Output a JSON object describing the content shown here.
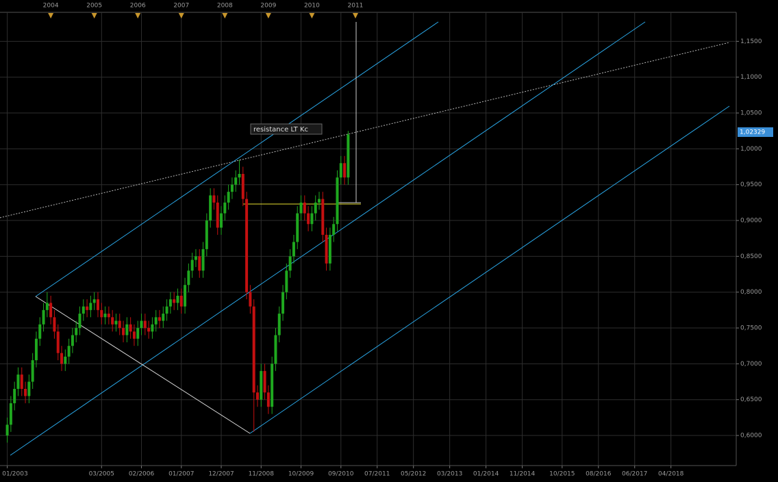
{
  "chart_data": {
    "type": "candlestick",
    "annotation": "resistance LT  Kc",
    "current_price": {
      "value": 1.02329,
      "label": "1,02329"
    },
    "top_labels": [
      "2004",
      "2005",
      "2006",
      "2007",
      "2008",
      "2009",
      "2010",
      "2011"
    ],
    "up_color": "#1fa81f",
    "down_color": "#c41010",
    "grid": true,
    "xlim": [
      "11/2002",
      "10/2019"
    ],
    "xticks": [
      "01/2003",
      "03/2005",
      "02/2006",
      "01/2007",
      "12/2007",
      "11/2008",
      "10/2009",
      "09/2010",
      "07/2011",
      "05/2012",
      "03/2013",
      "01/2014",
      "11/2014",
      "10/2015",
      "08/2016",
      "06/2017",
      "04/2018"
    ],
    "ylim": [
      0.558,
      1.179
    ],
    "yticks": [
      {
        "value": 0.6,
        "label": "0,6000"
      },
      {
        "value": 0.65,
        "label": "0,6500"
      },
      {
        "value": 0.7,
        "label": "0,7000"
      },
      {
        "value": 0.75,
        "label": "0,7500"
      },
      {
        "value": 0.8,
        "label": "0,8000"
      },
      {
        "value": 0.85,
        "label": "0,8500"
      },
      {
        "value": 0.9,
        "label": "0,9000"
      },
      {
        "value": 0.95,
        "label": "0,9500"
      },
      {
        "value": 1.0,
        "label": "1,0000"
      },
      {
        "value": 1.05,
        "label": "1,0500"
      },
      {
        "value": 1.1,
        "label": "1,1000"
      },
      {
        "value": 1.15,
        "label": "1,1500"
      }
    ],
    "x": [
      "01/2003",
      "02/2003",
      "03/2003",
      "04/2003",
      "05/2003",
      "06/2003",
      "07/2003",
      "08/2003",
      "09/2003",
      "10/2003",
      "11/2003",
      "12/2003",
      "01/2004",
      "02/2004",
      "03/2004",
      "04/2004",
      "05/2004",
      "06/2004",
      "07/2004",
      "08/2004",
      "09/2004",
      "10/2004",
      "11/2004",
      "12/2004",
      "01/2005",
      "02/2005",
      "03/2005",
      "04/2005",
      "05/2005",
      "06/2005",
      "07/2005",
      "08/2005",
      "09/2005",
      "10/2005",
      "11/2005",
      "12/2005",
      "01/2006",
      "02/2006",
      "03/2006",
      "04/2006",
      "05/2006",
      "06/2006",
      "07/2006",
      "08/2006",
      "09/2006",
      "10/2006",
      "11/2006",
      "12/2006",
      "01/2007",
      "02/2007",
      "03/2007",
      "04/2007",
      "05/2007",
      "06/2007",
      "07/2007",
      "08/2007",
      "09/2007",
      "10/2007",
      "11/2007",
      "12/2007",
      "01/2008",
      "02/2008",
      "03/2008",
      "04/2008",
      "05/2008",
      "06/2008",
      "07/2008",
      "08/2008",
      "09/2008",
      "10/2008",
      "11/2008",
      "12/2008",
      "01/2009",
      "02/2009",
      "03/2009",
      "04/2009",
      "05/2009",
      "06/2009",
      "07/2009",
      "08/2009",
      "09/2009",
      "10/2009",
      "11/2009",
      "12/2009",
      "01/2010",
      "02/2010",
      "03/2010",
      "04/2010",
      "05/2010",
      "06/2010",
      "07/2010",
      "08/2010",
      "09/2010",
      "10/2010",
      "11/2010"
    ],
    "open": [
      0.6,
      0.615,
      0.645,
      0.665,
      0.685,
      0.665,
      0.655,
      0.675,
      0.705,
      0.735,
      0.755,
      0.775,
      0.785,
      0.765,
      0.745,
      0.715,
      0.7,
      0.71,
      0.725,
      0.74,
      0.75,
      0.77,
      0.78,
      0.775,
      0.785,
      0.79,
      0.775,
      0.765,
      0.77,
      0.765,
      0.755,
      0.76,
      0.75,
      0.74,
      0.755,
      0.745,
      0.735,
      0.75,
      0.76,
      0.75,
      0.745,
      0.755,
      0.765,
      0.76,
      0.77,
      0.78,
      0.79,
      0.785,
      0.795,
      0.78,
      0.81,
      0.83,
      0.845,
      0.85,
      0.83,
      0.86,
      0.9,
      0.935,
      0.925,
      0.89,
      0.91,
      0.925,
      0.94,
      0.95,
      0.96,
      0.965,
      0.93,
      0.8,
      0.78,
      0.66,
      0.65,
      0.69,
      0.66,
      0.64,
      0.7,
      0.74,
      0.77,
      0.8,
      0.83,
      0.85,
      0.87,
      0.91,
      0.925,
      0.91,
      0.895,
      0.91,
      0.925,
      0.93,
      0.88,
      0.84,
      0.88,
      0.895,
      0.96,
      0.98,
      0.96
    ],
    "high": [
      0.625,
      0.655,
      0.675,
      0.695,
      0.695,
      0.675,
      0.685,
      0.715,
      0.745,
      0.765,
      0.785,
      0.8,
      0.795,
      0.775,
      0.755,
      0.725,
      0.72,
      0.735,
      0.75,
      0.76,
      0.78,
      0.79,
      0.79,
      0.795,
      0.8,
      0.8,
      0.785,
      0.78,
      0.78,
      0.775,
      0.77,
      0.77,
      0.76,
      0.765,
      0.765,
      0.755,
      0.76,
      0.77,
      0.77,
      0.76,
      0.765,
      0.775,
      0.775,
      0.78,
      0.79,
      0.8,
      0.8,
      0.805,
      0.805,
      0.82,
      0.84,
      0.855,
      0.86,
      0.86,
      0.87,
      0.91,
      0.945,
      0.945,
      0.935,
      0.92,
      0.935,
      0.95,
      0.96,
      0.97,
      0.985,
      0.975,
      0.94,
      0.81,
      0.79,
      0.67,
      0.7,
      0.7,
      0.67,
      0.71,
      0.75,
      0.78,
      0.81,
      0.84,
      0.86,
      0.88,
      0.92,
      0.935,
      0.935,
      0.92,
      0.92,
      0.935,
      0.94,
      0.94,
      0.89,
      0.89,
      0.905,
      0.97,
      0.99,
      0.99,
      1.025
    ],
    "low": [
      0.59,
      0.605,
      0.635,
      0.655,
      0.655,
      0.645,
      0.645,
      0.665,
      0.695,
      0.725,
      0.745,
      0.765,
      0.755,
      0.735,
      0.705,
      0.69,
      0.69,
      0.7,
      0.715,
      0.73,
      0.74,
      0.76,
      0.765,
      0.765,
      0.775,
      0.765,
      0.755,
      0.755,
      0.755,
      0.745,
      0.745,
      0.74,
      0.73,
      0.73,
      0.735,
      0.725,
      0.725,
      0.74,
      0.74,
      0.735,
      0.735,
      0.745,
      0.75,
      0.75,
      0.76,
      0.77,
      0.775,
      0.775,
      0.77,
      0.77,
      0.8,
      0.82,
      0.835,
      0.82,
      0.82,
      0.85,
      0.89,
      0.915,
      0.88,
      0.88,
      0.9,
      0.915,
      0.93,
      0.94,
      0.95,
      0.92,
      0.79,
      0.77,
      0.605,
      0.64,
      0.64,
      0.65,
      0.63,
      0.63,
      0.69,
      0.73,
      0.76,
      0.79,
      0.82,
      0.84,
      0.86,
      0.9,
      0.9,
      0.885,
      0.885,
      0.9,
      0.915,
      0.87,
      0.83,
      0.83,
      0.87,
      0.885,
      0.95,
      0.95,
      0.95
    ],
    "close": [
      0.615,
      0.645,
      0.665,
      0.685,
      0.665,
      0.655,
      0.675,
      0.705,
      0.735,
      0.755,
      0.775,
      0.785,
      0.765,
      0.745,
      0.715,
      0.7,
      0.71,
      0.725,
      0.74,
      0.75,
      0.77,
      0.78,
      0.775,
      0.785,
      0.79,
      0.775,
      0.765,
      0.77,
      0.765,
      0.755,
      0.76,
      0.75,
      0.74,
      0.755,
      0.745,
      0.735,
      0.75,
      0.76,
      0.75,
      0.745,
      0.755,
      0.765,
      0.76,
      0.77,
      0.78,
      0.79,
      0.785,
      0.795,
      0.78,
      0.81,
      0.83,
      0.845,
      0.85,
      0.83,
      0.86,
      0.9,
      0.935,
      0.925,
      0.89,
      0.91,
      0.925,
      0.94,
      0.95,
      0.96,
      0.965,
      0.93,
      0.8,
      0.78,
      0.66,
      0.65,
      0.69,
      0.66,
      0.64,
      0.7,
      0.74,
      0.77,
      0.8,
      0.83,
      0.85,
      0.87,
      0.91,
      0.925,
      0.91,
      0.895,
      0.91,
      0.925,
      0.93,
      0.88,
      0.84,
      0.88,
      0.895,
      0.96,
      0.98,
      0.96,
      1.02
    ]
  }
}
